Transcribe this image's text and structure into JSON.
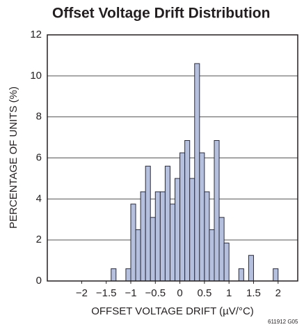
{
  "chart_data": {
    "type": "histogram",
    "title": "Offset Voltage Drift Distribution",
    "x_label": "OFFSET VOLTAGE DRIFT (µV/°C)",
    "y_label": "PERCENTAGE OF UNITS (%)",
    "footnote": "611912 G05",
    "bins": [
      -1.4,
      -1.3,
      -1.2,
      -1.1,
      -1.0,
      -0.9,
      -0.8,
      -0.7,
      -0.6,
      -0.5,
      -0.4,
      -0.3,
      -0.2,
      -0.1,
      0,
      0.1,
      0.2,
      0.3,
      0.4,
      0.5,
      0.6,
      0.7,
      0.8,
      0.9,
      1.0,
      1.1,
      1.2,
      1.3,
      1.4,
      1.5,
      1.6,
      1.7,
      1.8,
      1.9,
      2.0
    ],
    "values": [
      0.6,
      0,
      0,
      0.6,
      3.75,
      2.5,
      4.35,
      5.6,
      3.1,
      4.35,
      4.35,
      5.6,
      3.75,
      5.0,
      6.25,
      6.85,
      5.0,
      10.6,
      6.25,
      4.35,
      2.5,
      6.85,
      3.1,
      1.85,
      0,
      0,
      0.6,
      0,
      1.25,
      0,
      0,
      0,
      0,
      0.6
    ],
    "color": "#b4c0dd",
    "edge_color": "#2b2b3a",
    "xlim": [
      -2.7,
      2.4
    ],
    "xticks": [
      {
        "value": -2,
        "label": "−2"
      },
      {
        "value": -1.5,
        "label": "−1.5"
      },
      {
        "value": -1,
        "label": "−1"
      },
      {
        "value": -0.5,
        "label": "−0.5"
      },
      0,
      0.5,
      1,
      1.5,
      2
    ],
    "ylim": [
      0,
      12
    ],
    "yticks": [
      0,
      2,
      4,
      6,
      8,
      10,
      12
    ],
    "grid": true
  }
}
